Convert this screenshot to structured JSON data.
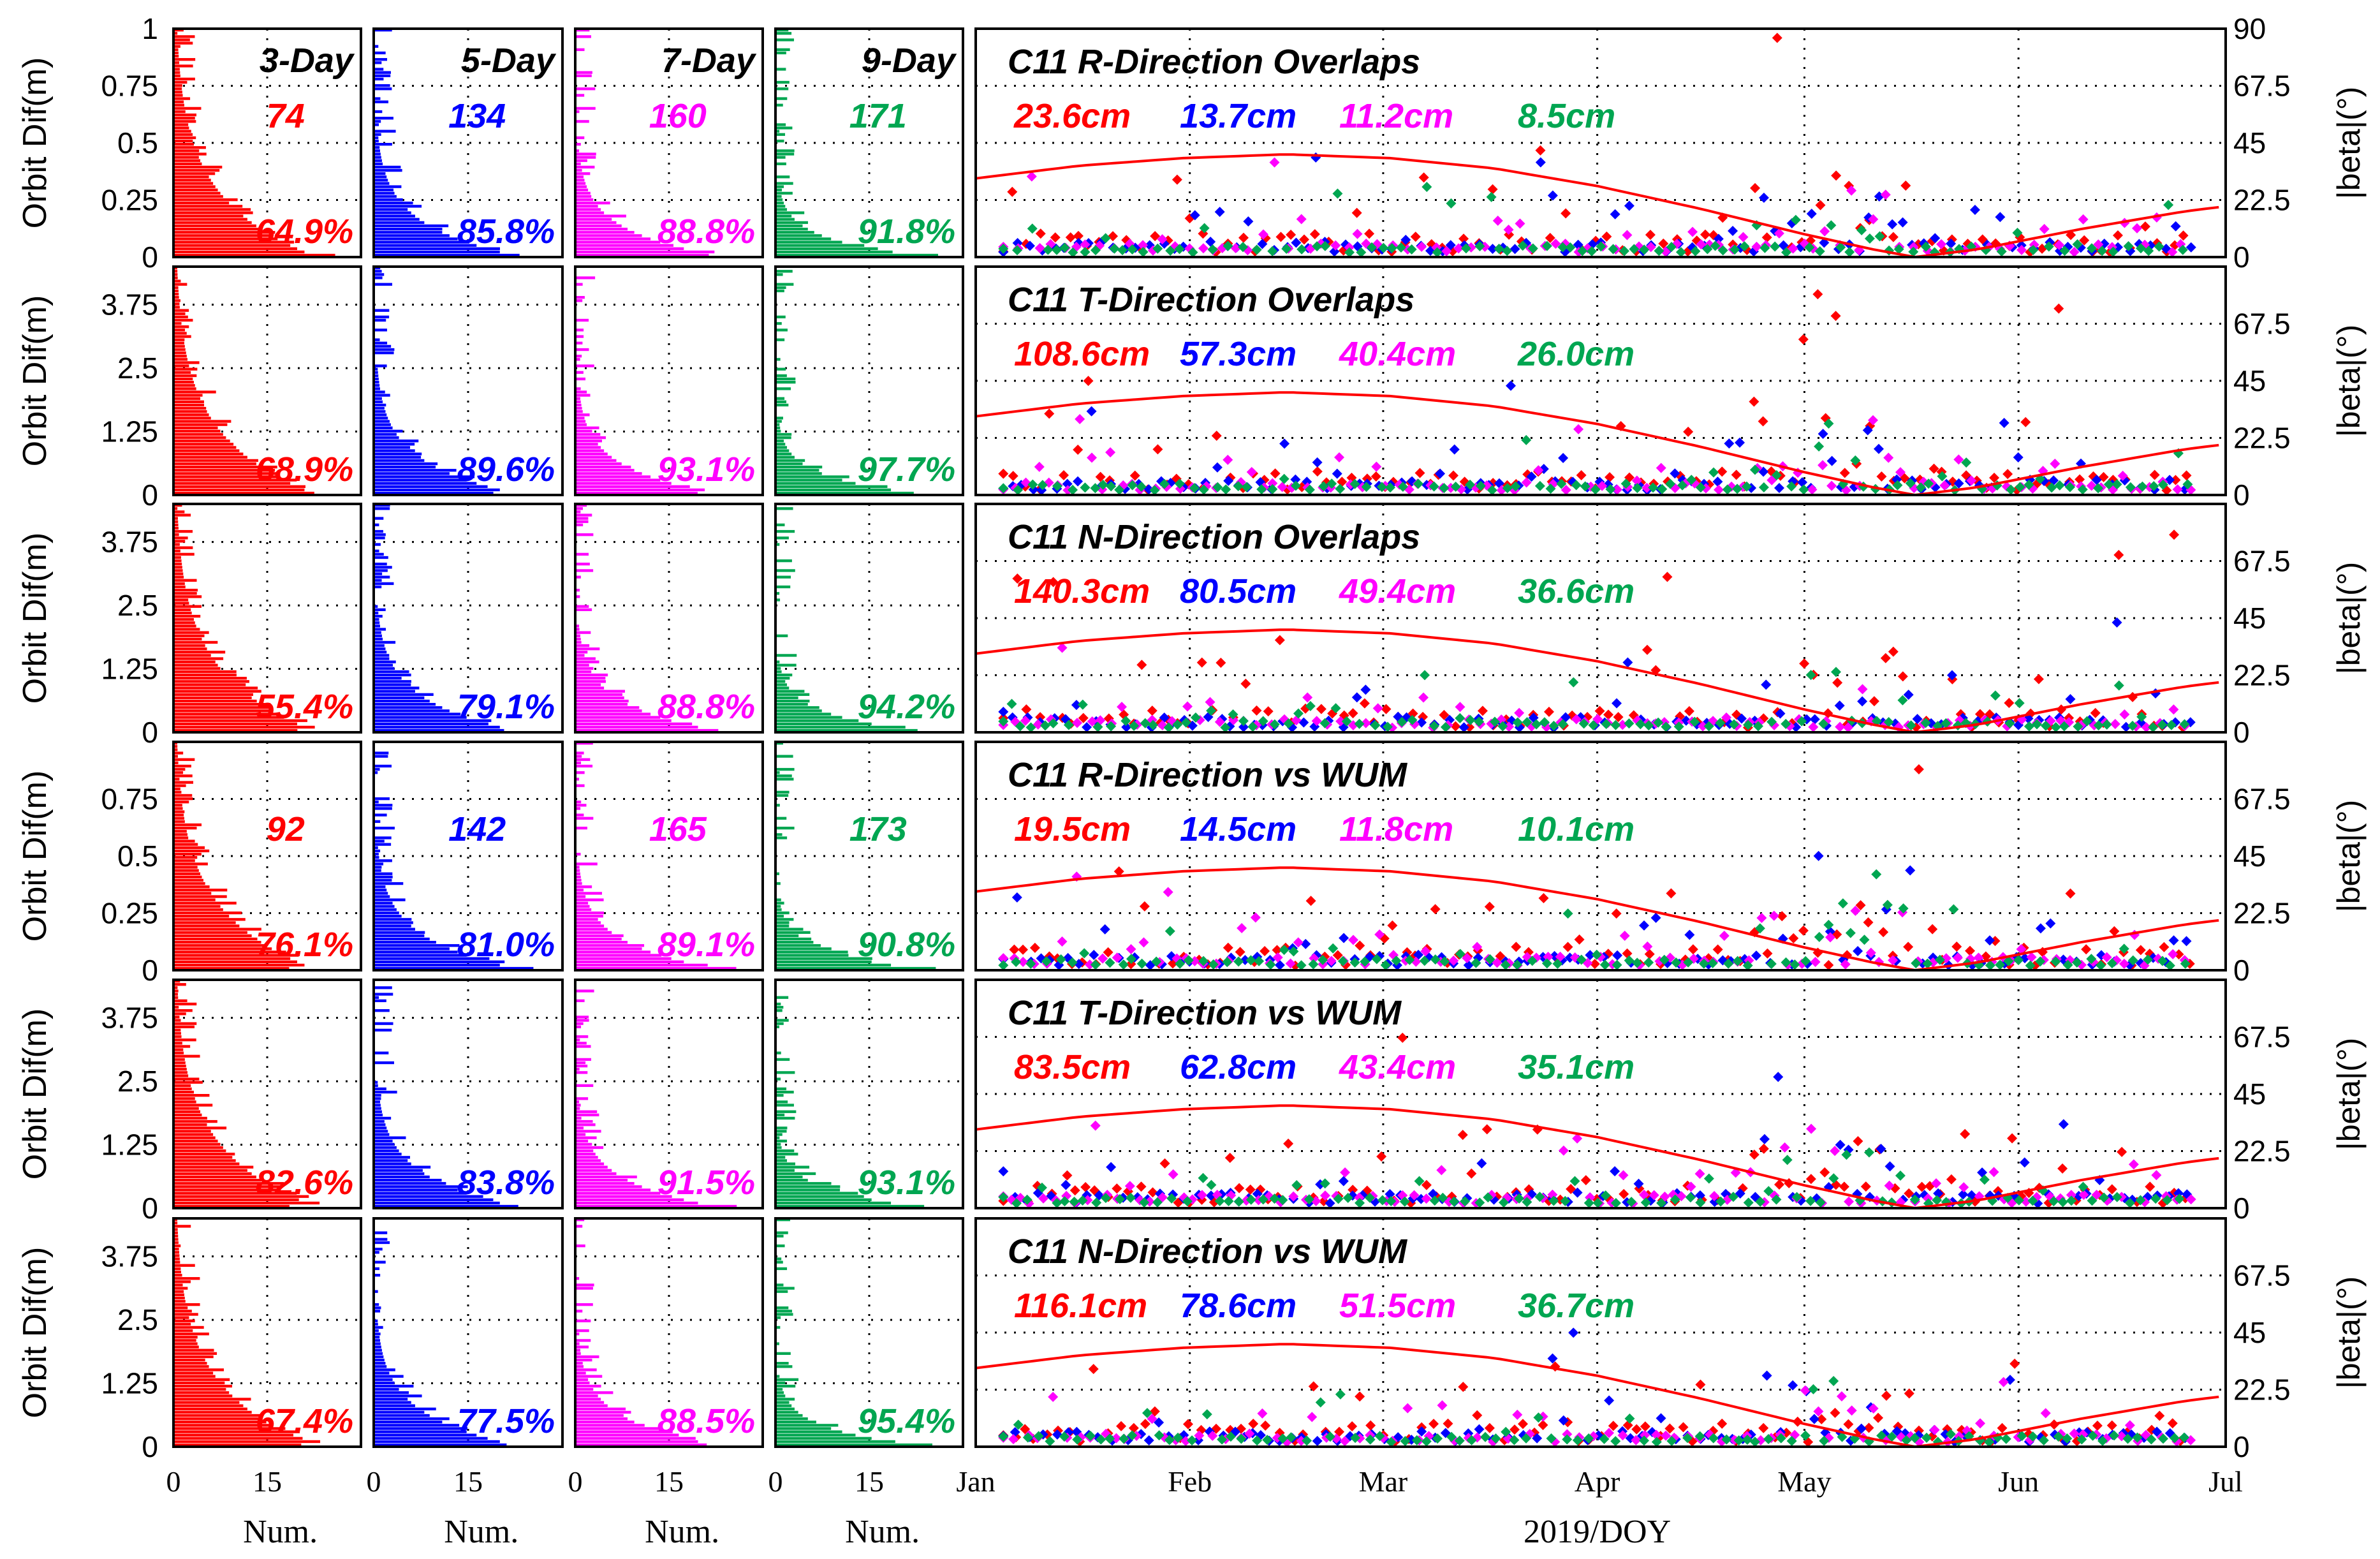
{
  "figure": {
    "ylabel_left": "Orbit Dif(m)",
    "ylabel_right": "|beta|(°)",
    "hist_xlabel": "Num.",
    "time_xlabel": "2019/DOY",
    "colors": {
      "d3": "#ff0000",
      "d5": "#0000ff",
      "d7": "#ff00ff",
      "d9": "#00a651",
      "beta": "#ff0000"
    }
  },
  "chart_data": {
    "type": "scatter",
    "hist_x_ticks": [
      "0",
      "15"
    ],
    "hist_x_range": [
      0,
      30
    ],
    "time_x_ticks": [
      "Jan",
      "Feb",
      "Mar",
      "Apr",
      "May",
      "Jun",
      "Jul"
    ],
    "beta_ticks_full": [
      "0",
      "22.5",
      "45",
      "67.5",
      "90"
    ],
    "beta_ticks": [
      "0",
      "22.5",
      "45",
      "67.5"
    ],
    "beta_range": [
      0,
      90
    ],
    "beta_curve": [
      [
        0,
        31
      ],
      [
        15,
        36
      ],
      [
        30,
        39
      ],
      [
        45,
        40.5
      ],
      [
        60,
        39
      ],
      [
        75,
        35
      ],
      [
        90,
        28
      ],
      [
        105,
        19
      ],
      [
        120,
        9
      ],
      [
        130,
        3
      ],
      [
        136,
        0
      ],
      [
        145,
        3
      ],
      [
        160,
        11
      ],
      [
        175,
        18
      ],
      [
        181,
        20
      ]
    ],
    "panels": [
      {
        "title": "C11 R-Direction Overlaps",
        "series_labels": [
          "3-Day",
          "5-Day",
          "7-Day",
          "9-Day"
        ],
        "y_ticks": [
          "0",
          "0.25",
          "0.5",
          "0.75",
          "1"
        ],
        "y_range": [
          0,
          1
        ],
        "rms": [
          "23.6cm",
          "13.7cm",
          "11.2cm",
          "8.5cm"
        ],
        "counts": [
          "74",
          "134",
          "160",
          "171"
        ],
        "percentages": [
          "64.9%",
          "85.8%",
          "88.8%",
          "91.8%"
        ]
      },
      {
        "title": "C11 T-Direction Overlaps",
        "y_ticks": [
          "0",
          "1.25",
          "2.5",
          "3.75"
        ],
        "y_range": [
          0,
          4.5
        ],
        "rms": [
          "108.6cm",
          "57.3cm",
          "40.4cm",
          "26.0cm"
        ],
        "percentages": [
          "68.9%",
          "89.6%",
          "93.1%",
          "97.7%"
        ]
      },
      {
        "title": "C11 N-Direction Overlaps",
        "y_ticks": [
          "0",
          "1.25",
          "2.5",
          "3.75"
        ],
        "y_range": [
          0,
          4.5
        ],
        "rms": [
          "140.3cm",
          "80.5cm",
          "49.4cm",
          "36.6cm"
        ],
        "percentages": [
          "55.4%",
          "79.1%",
          "88.8%",
          "94.2%"
        ]
      },
      {
        "title": "C11 R-Direction vs WUM",
        "y_ticks": [
          "0",
          "0.25",
          "0.5",
          "0.75"
        ],
        "y_range": [
          0,
          1
        ],
        "rms": [
          "19.5cm",
          "14.5cm",
          "11.8cm",
          "10.1cm"
        ],
        "counts": [
          "92",
          "142",
          "165",
          "173"
        ],
        "percentages": [
          "76.1%",
          "81.0%",
          "89.1%",
          "90.8%"
        ]
      },
      {
        "title": "C11 T-Direction vs WUM",
        "y_ticks": [
          "0",
          "1.25",
          "2.5",
          "3.75"
        ],
        "y_range": [
          0,
          4.5
        ],
        "rms": [
          "83.5cm",
          "62.8cm",
          "43.4cm",
          "35.1cm"
        ],
        "percentages": [
          "82.6%",
          "83.8%",
          "91.5%",
          "93.1%"
        ]
      },
      {
        "title": "C11 N-Direction vs WUM",
        "y_ticks": [
          "0",
          "1.25",
          "2.5",
          "3.75"
        ],
        "y_range": [
          0,
          4.5
        ],
        "rms": [
          "116.1cm",
          "78.6cm",
          "51.5cm",
          "36.7cm"
        ],
        "percentages": [
          "67.4%",
          "77.5%",
          "88.5%",
          "95.4%"
        ]
      }
    ]
  }
}
